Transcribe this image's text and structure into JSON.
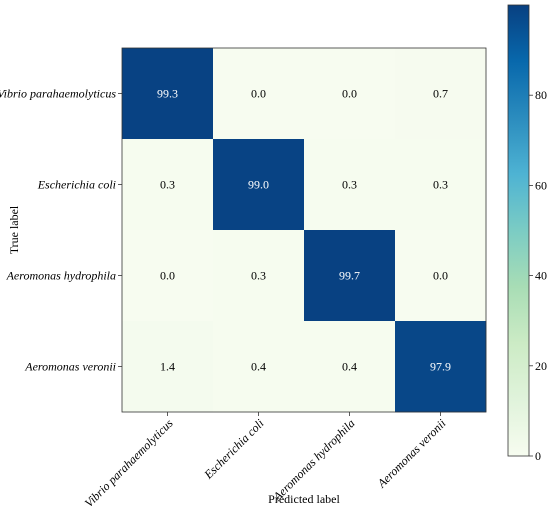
{
  "chart_data": {
    "type": "heatmap",
    "title": "",
    "xlabel": "Predicted label",
    "ylabel": "True label",
    "x_categories": [
      "Vibrio parahaemolyticus",
      "Escherichia coli",
      "Aeromonas hydrophila",
      "Aeromonas veronii"
    ],
    "y_categories": [
      "Vibrio parahaemolyticus",
      "Escherichia coli",
      "Aeromonas hydrophila",
      "Aeromonas veronii"
    ],
    "values": [
      [
        99.3,
        0.0,
        0.0,
        0.7
      ],
      [
        0.3,
        99.0,
        0.3,
        0.3
      ],
      [
        0.0,
        0.3,
        99.7,
        0.0
      ],
      [
        1.4,
        0.4,
        0.4,
        97.9
      ]
    ],
    "value_labels": [
      [
        "99.3",
        "0.0",
        "0.0",
        "0.7"
      ],
      [
        "0.3",
        "99.0",
        "0.3",
        "0.3"
      ],
      [
        "0.0",
        "0.3",
        "99.7",
        "0.0"
      ],
      [
        "1.4",
        "0.4",
        "0.4",
        "97.9"
      ]
    ],
    "colormap": "GnBu",
    "colorbar": {
      "range": [
        0,
        100
      ],
      "ticks": [
        0,
        20,
        40,
        60,
        80
      ]
    },
    "grid": false
  }
}
